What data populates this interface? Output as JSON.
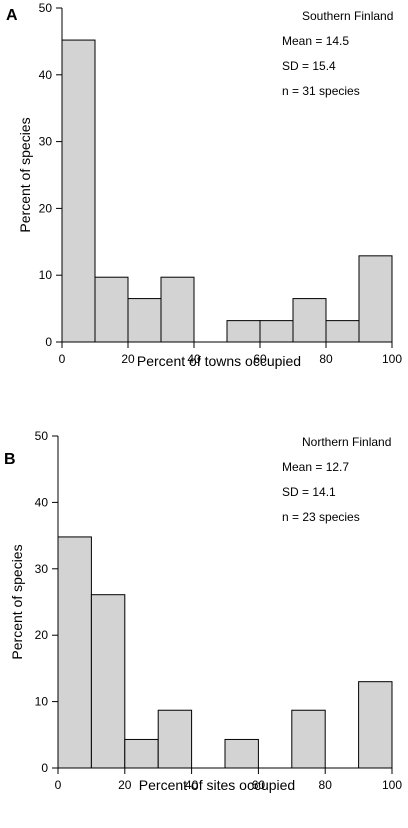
{
  "chart_data": [
    {
      "type": "bar",
      "panel_label": "A",
      "xlabel": "Percent of towns occupied",
      "ylabel": "Percent of species",
      "xlim": [
        0,
        100
      ],
      "ylim": [
        0,
        50
      ],
      "xticks": [
        0,
        20,
        40,
        60,
        80,
        100
      ],
      "yticks": [
        0,
        10,
        20,
        30,
        40,
        50
      ],
      "bin_width": 10,
      "bins": [
        {
          "x": 0,
          "value": 45.2
        },
        {
          "x": 10,
          "value": 9.7
        },
        {
          "x": 20,
          "value": 6.5
        },
        {
          "x": 30,
          "value": 9.7
        },
        {
          "x": 40,
          "value": 0
        },
        {
          "x": 50,
          "value": 3.2
        },
        {
          "x": 60,
          "value": 3.2
        },
        {
          "x": 70,
          "value": 6.5
        },
        {
          "x": 80,
          "value": 3.2
        },
        {
          "x": 90,
          "value": 12.9
        }
      ],
      "annotations": [
        "Southern Finland",
        "Mean = 14.5",
        "SD = 15.4",
        "n = 31 species"
      ],
      "bar_color": "#d3d3d3",
      "grid": false
    },
    {
      "type": "bar",
      "panel_label": "B",
      "xlabel": "Percent of sites occupied",
      "ylabel": "Percent of species",
      "xlim": [
        0,
        100
      ],
      "ylim": [
        0,
        50
      ],
      "xticks": [
        0,
        20,
        40,
        60,
        80,
        100
      ],
      "yticks": [
        0,
        10,
        20,
        30,
        40,
        50
      ],
      "bin_width": 10,
      "bins": [
        {
          "x": 0,
          "value": 34.8
        },
        {
          "x": 10,
          "value": 26.1
        },
        {
          "x": 20,
          "value": 4.3
        },
        {
          "x": 30,
          "value": 8.7
        },
        {
          "x": 40,
          "value": 0
        },
        {
          "x": 50,
          "value": 4.3
        },
        {
          "x": 60,
          "value": 0
        },
        {
          "x": 70,
          "value": 8.7
        },
        {
          "x": 80,
          "value": 0
        },
        {
          "x": 90,
          "value": 13.0
        }
      ],
      "annotations": [
        "Northern Finland",
        "Mean = 12.7",
        "SD = 14.1",
        "n = 23 species"
      ],
      "bar_color": "#d3d3d3",
      "grid": false
    }
  ]
}
